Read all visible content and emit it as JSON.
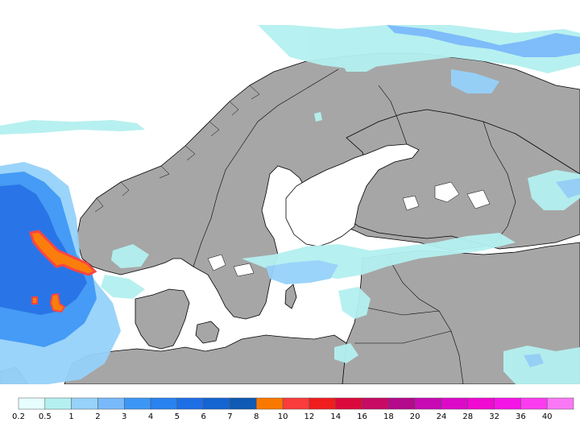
{
  "legend": {
    "ticks": [
      "0.2",
      "0.5",
      "1",
      "2",
      "3",
      "4",
      "5",
      "6",
      "7",
      "8",
      "10",
      "12",
      "14",
      "16",
      "18",
      "20",
      "24",
      "28",
      "32",
      "36",
      "40"
    ],
    "colors": [
      "#e6fffe",
      "#b4f0f0",
      "#96d2fa",
      "#78b9fa",
      "#3c96f5",
      "#2882f0",
      "#1e6ee6",
      "#1464d2",
      "#0f5ab4",
      "#fa7800",
      "#fa3c3c",
      "#f01e1e",
      "#dc0a3c",
      "#c80a64",
      "#b40a8c",
      "#c80ab4",
      "#dc0ac8",
      "#f00ad2",
      "#f514e6",
      "#fa3cf0",
      "#fa78f5"
    ]
  },
  "map": {
    "land_color": "#a6a6a6",
    "sea_color": "#ffffff",
    "border_color": "#000000"
  }
}
